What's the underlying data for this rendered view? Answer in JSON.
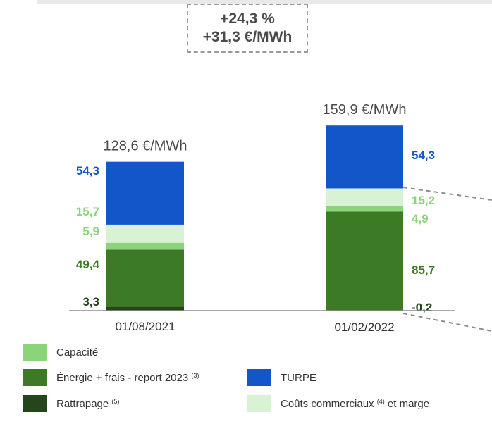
{
  "colors": {
    "capacite": "#8cd47a",
    "energie": "#3c7a26",
    "rattrapage": "#24461a",
    "turpe": "#1256c9",
    "couts": "#d9f2d3",
    "axis": "#8c8c8c",
    "text_dark": "#4a4a4a"
  },
  "change": {
    "percent": "+24,3 %",
    "amount": "+31,3 €/MWh"
  },
  "chart_data": {
    "type": "bar",
    "stacked": true,
    "unit": "€/MWh",
    "categories": [
      "01/08/2021",
      "01/02/2022"
    ],
    "totals": [
      "128,6 €/MWh",
      "159,9 €/MWh"
    ],
    "series": [
      {
        "key": "rattrapage",
        "name": "Rattrapage",
        "values": [
          3.3,
          -0.2
        ],
        "labels": [
          "3,3",
          "-0,2"
        ]
      },
      {
        "key": "energie",
        "name": "Énergie + frais - report 2023",
        "values": [
          49.4,
          85.7
        ],
        "labels": [
          "49,4",
          "85,7"
        ]
      },
      {
        "key": "capacite",
        "name": "Capacité",
        "values": [
          5.9,
          4.9
        ],
        "labels": [
          "5,9",
          "4,9"
        ]
      },
      {
        "key": "couts",
        "name": "Coûts commerciaux et marge",
        "values": [
          15.7,
          15.2
        ],
        "labels": [
          "15,7",
          "15,2"
        ]
      },
      {
        "key": "turpe",
        "name": "TURPE",
        "values": [
          54.3,
          54.3
        ],
        "labels": [
          "54,3",
          "54,3"
        ]
      }
    ],
    "ylim": [
      0,
      160
    ]
  },
  "legend": {
    "capacite": {
      "label": "Capacité",
      "note": ""
    },
    "energie": {
      "label": "Énergie + frais - report 2023",
      "note": "(3)"
    },
    "rattrapage": {
      "label": "Rattrapage",
      "note": "(5)"
    },
    "turpe": {
      "label": "TURPE",
      "note": ""
    },
    "couts": {
      "label": "Coûts commerciaux",
      "note": "(4)",
      "suffix": " et marge"
    }
  }
}
